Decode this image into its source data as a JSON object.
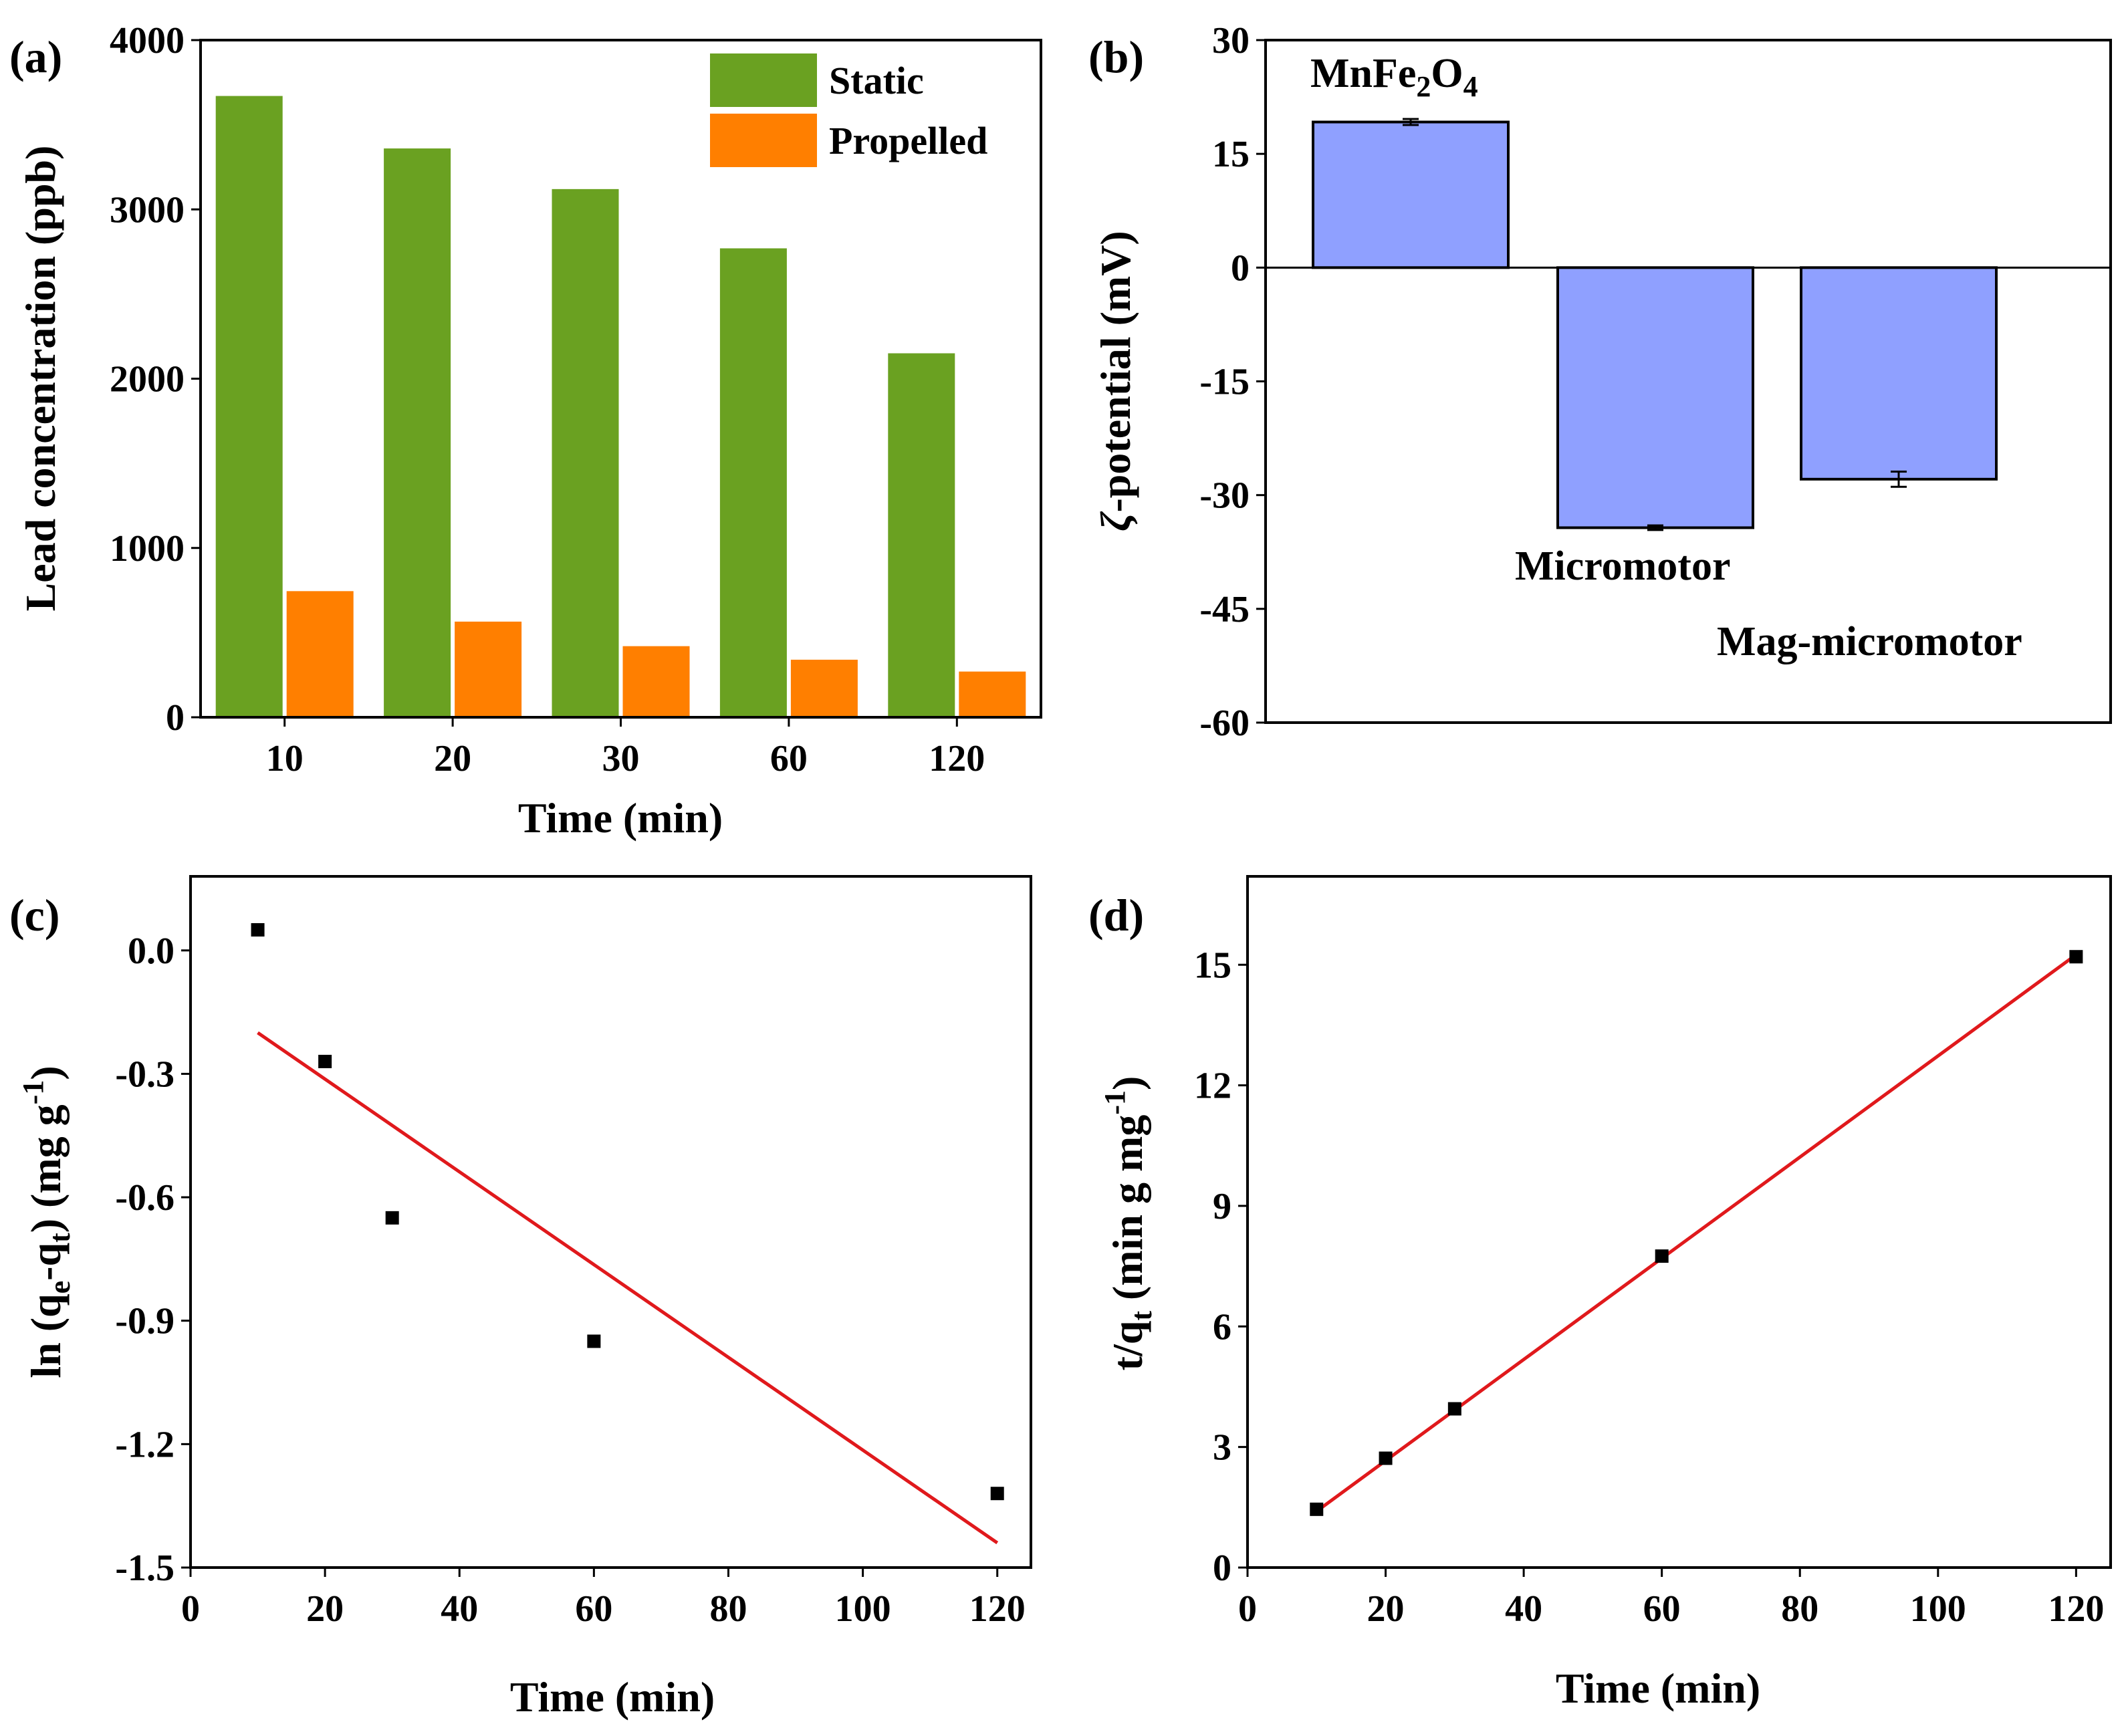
{
  "chart_data": [
    {
      "panel": "(a)",
      "type": "bar",
      "xlabel": "Time (min)",
      "ylabel": "Lead concentration (ppb)",
      "categories": [
        "10",
        "20",
        "30",
        "60",
        "120"
      ],
      "yticks": [
        "0",
        "1000",
        "2000",
        "3000",
        "4000"
      ],
      "ylim": [
        0,
        4000
      ],
      "series": [
        {
          "name": "Static",
          "color": "#6aa121",
          "values": [
            3670,
            3360,
            3120,
            2770,
            2150
          ]
        },
        {
          "name": "Propelled",
          "color": "#ff7f00",
          "values": [
            745,
            565,
            420,
            340,
            270
          ]
        }
      ],
      "legend": "top-right"
    },
    {
      "panel": "(b)",
      "type": "bar",
      "ylabel_prefix": "ζ",
      "ylabel_rest": "-potential (mV)",
      "categories": [
        "MnFe2O4",
        "Micromotor",
        "Mag-micromotor"
      ],
      "label_parts": [
        [
          "MnFe",
          "2",
          "O",
          "4"
        ],
        [
          "Micromotor"
        ],
        [
          "Mag-micromotor"
        ]
      ],
      "values": [
        19.2,
        -34.3,
        -27.9
      ],
      "errors": [
        0.4,
        0.3,
        1.0
      ],
      "color": "#8fa0ff",
      "yticks": [
        "30",
        "15",
        "0",
        "-15",
        "-30",
        "-45",
        "-60"
      ],
      "ylim": [
        -60,
        30
      ]
    },
    {
      "panel": "(c)",
      "type": "scatter",
      "xlabel": "Time (min)",
      "ylabel_parts": [
        "ln (q",
        "e",
        "-q",
        "t",
        ") (mg g",
        "-1",
        ")"
      ],
      "x": [
        10,
        20,
        30,
        60,
        120
      ],
      "y": [
        0.05,
        -0.27,
        -0.65,
        -0.95,
        -1.32
      ],
      "fit": {
        "x": [
          10,
          120
        ],
        "y": [
          -0.2,
          -1.44
        ],
        "color": "#e0191c"
      },
      "xticks": [
        "0",
        "20",
        "40",
        "60",
        "80",
        "100",
        "120"
      ],
      "yticks": [
        "0.0",
        "-0.3",
        "-0.6",
        "-0.9",
        "-1.2",
        "-1.5"
      ],
      "xlim": [
        0,
        125
      ],
      "ylim": [
        -1.5,
        0.18
      ]
    },
    {
      "panel": "(d)",
      "type": "scatter",
      "xlabel": "Time (min)",
      "ylabel_parts": [
        "t/q",
        "t",
        " (min g mg",
        "-1",
        ")"
      ],
      "x": [
        10,
        20,
        30,
        60,
        120
      ],
      "y": [
        1.45,
        2.72,
        3.95,
        7.75,
        15.2
      ],
      "fit": {
        "x": [
          10,
          120
        ],
        "y": [
          1.4,
          15.25
        ],
        "color": "#e0191c"
      },
      "xticks": [
        "0",
        "20",
        "40",
        "60",
        "80",
        "100",
        "120"
      ],
      "yticks": [
        "0",
        "3",
        "6",
        "9",
        "12",
        "15"
      ],
      "xlim": [
        0,
        125
      ],
      "ylim": [
        0,
        17.2
      ]
    }
  ]
}
